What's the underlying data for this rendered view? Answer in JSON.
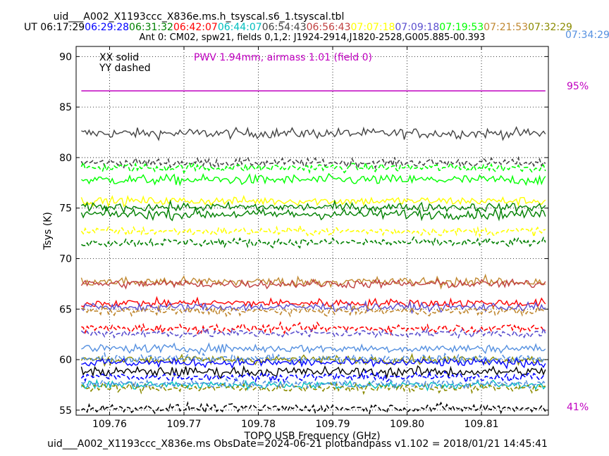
{
  "window_title": "uid___A002_X1193ccc_X836e.ms.h_tsyscal.s6_1.tsyscal.tbl",
  "ut_prefix": "UT",
  "ut_times": [
    {
      "text": "06:17:29",
      "color": "#000000"
    },
    {
      "text": "06:29:28",
      "color": "#0000ff"
    },
    {
      "text": "06:31:32",
      "color": "#008000"
    },
    {
      "text": "06:42:07",
      "color": "#ff0000"
    },
    {
      "text": "06:44:07",
      "color": "#00bfbf"
    },
    {
      "text": "06:54:43",
      "color": "#444444"
    },
    {
      "text": "06:56:43",
      "color": "#c04040"
    },
    {
      "text": "07:07:18",
      "color": "#ffff00"
    },
    {
      "text": "07:09:18",
      "color": "#5a4fcf"
    },
    {
      "text": "07:19:53",
      "color": "#00ff00"
    },
    {
      "text": "07:21:53",
      "color": "#c08830"
    },
    {
      "text": "07:32:29",
      "color": "#8b8b00"
    }
  ],
  "ut_overflow": {
    "text": "07:34:29",
    "color": "#5590e0"
  },
  "subtitle": "Ant 0: CM02,  spw21,  fields 0,1,2: J1924-2914,J1820-2528,G005.885-00.393",
  "legend_lines": [
    "XX solid",
    "YY dashed"
  ],
  "pwv_label": "PWV 1.94mm, airmass 1.01 (field 0)",
  "pwv_color": "#c000c0",
  "right_labels": {
    "top": "95%",
    "bottom": "41%"
  },
  "footer": "uid___A002_X1193ccc_X836e.ms  ObsDate=2024-06-21    plotbandpass v1.102 = 2018/01/21 14:45:41",
  "chart_data": {
    "type": "line",
    "xlabel": "TOPO USB Frequency (GHz)",
    "ylabel": "Tsys (K)",
    "xlim": [
      109.7555,
      109.819
    ],
    "ylim": [
      54.5,
      91
    ],
    "xticks": [
      109.76,
      109.77,
      109.78,
      109.79,
      109.8,
      109.81
    ],
    "xtick_labels": [
      "109.76",
      "109.77",
      "109.78",
      "109.79",
      "109.80",
      "109.81"
    ],
    "yticks": [
      55,
      60,
      65,
      70,
      75,
      80,
      85,
      90
    ],
    "grid": true,
    "transmission_line": {
      "y": 86.6,
      "color": "#c000c0"
    },
    "series": [
      {
        "level": 82.4,
        "noise": 0.35,
        "color": "#444444",
        "dashed": false
      },
      {
        "level": 79.5,
        "noise": 0.3,
        "color": "#444444",
        "dashed": true
      },
      {
        "level": 77.8,
        "noise": 0.35,
        "color": "#00ff00",
        "dashed": false
      },
      {
        "level": 79.0,
        "noise": 0.3,
        "color": "#00ff00",
        "dashed": true
      },
      {
        "level": 75.7,
        "noise": 0.3,
        "color": "#ffff00",
        "dashed": false
      },
      {
        "level": 72.7,
        "noise": 0.3,
        "color": "#ffff00",
        "dashed": true
      },
      {
        "level": 74.4,
        "noise": 0.35,
        "color": "#008000",
        "dashed": false
      },
      {
        "level": 71.6,
        "noise": 0.3,
        "color": "#008000",
        "dashed": true
      },
      {
        "level": 75.1,
        "noise": 0.3,
        "color": "#008000",
        "dashed": false
      },
      {
        "level": 67.7,
        "noise": 0.35,
        "color": "#c08830",
        "dashed": false
      },
      {
        "level": 67.5,
        "noise": 0.3,
        "color": "#c04040",
        "dashed": false
      },
      {
        "level": 65.6,
        "noise": 0.3,
        "color": "#ff0000",
        "dashed": false
      },
      {
        "level": 65.2,
        "noise": 0.3,
        "color": "#5a4fcf",
        "dashed": false
      },
      {
        "level": 64.8,
        "noise": 0.3,
        "color": "#c08830",
        "dashed": true
      },
      {
        "level": 63.1,
        "noise": 0.3,
        "color": "#ff0000",
        "dashed": true
      },
      {
        "level": 62.6,
        "noise": 0.3,
        "color": "#5a4fcf",
        "dashed": true
      },
      {
        "level": 61.1,
        "noise": 0.3,
        "color": "#5590e0",
        "dashed": false
      },
      {
        "level": 60.0,
        "noise": 0.3,
        "color": "#8b8b00",
        "dashed": false
      },
      {
        "level": 59.7,
        "noise": 0.3,
        "color": "#0000ff",
        "dashed": false
      },
      {
        "level": 60.1,
        "noise": 0.3,
        "color": "#5590e0",
        "dashed": true
      },
      {
        "level": 58.8,
        "noise": 0.35,
        "color": "#000000",
        "dashed": false
      },
      {
        "level": 58.3,
        "noise": 0.3,
        "color": "#0000ff",
        "dashed": true
      },
      {
        "level": 57.5,
        "noise": 0.3,
        "color": "#00bfbf",
        "dashed": false
      },
      {
        "level": 57.2,
        "noise": 0.3,
        "color": "#8b8b00",
        "dashed": true
      },
      {
        "level": 57.6,
        "noise": 0.3,
        "color": "#5590e0",
        "dashed": true
      },
      {
        "level": 55.2,
        "noise": 0.3,
        "color": "#000000",
        "dashed": true
      }
    ]
  }
}
